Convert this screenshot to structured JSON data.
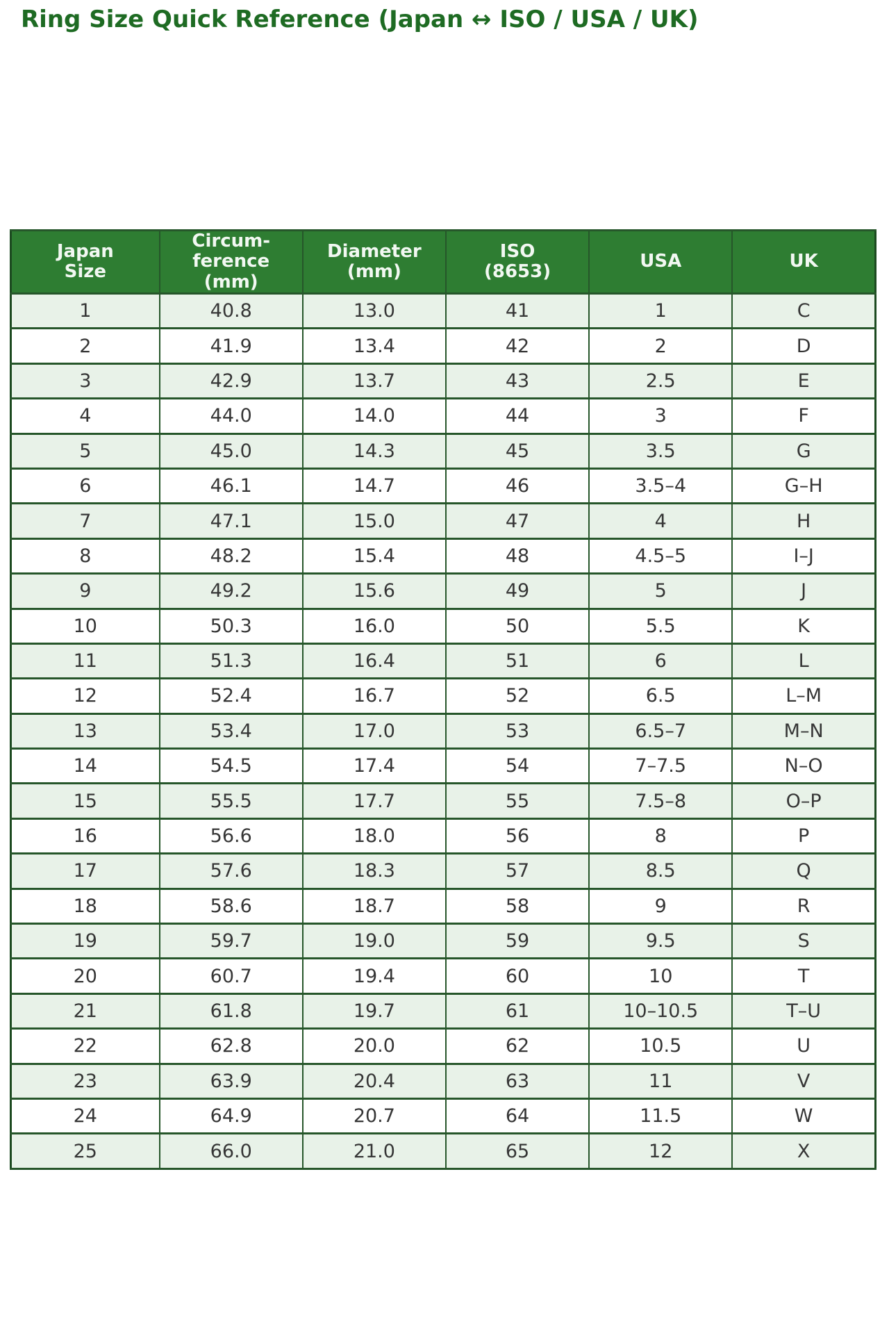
{
  "title": "Ring Size Quick Reference (Japan ↔ ISO / USA / UK)",
  "colors": {
    "title_text": "#1e6b23",
    "header_bg": "#2e7d32",
    "header_text": "#f2f8f2",
    "border": "#26562a",
    "row_stripe_bg": "#e8f2e8",
    "row_bg": "#ffffff",
    "cell_text": "#363636"
  },
  "chart_data": {
    "type": "table",
    "title": "Ring Size Quick Reference (Japan ↔ ISO / USA / UK)",
    "headers": [
      "Japan\nSize",
      "Circum-\nference\n(mm)",
      "Diameter\n(mm)",
      "ISO\n(8653)",
      "USA",
      "UK"
    ],
    "rows": [
      [
        "1",
        "40.8",
        "13.0",
        "41",
        "1",
        "C"
      ],
      [
        "2",
        "41.9",
        "13.4",
        "42",
        "2",
        "D"
      ],
      [
        "3",
        "42.9",
        "13.7",
        "43",
        "2.5",
        "E"
      ],
      [
        "4",
        "44.0",
        "14.0",
        "44",
        "3",
        "F"
      ],
      [
        "5",
        "45.0",
        "14.3",
        "45",
        "3.5",
        "G"
      ],
      [
        "6",
        "46.1",
        "14.7",
        "46",
        "3.5–4",
        "G–H"
      ],
      [
        "7",
        "47.1",
        "15.0",
        "47",
        "4",
        "H"
      ],
      [
        "8",
        "48.2",
        "15.4",
        "48",
        "4.5–5",
        "I–J"
      ],
      [
        "9",
        "49.2",
        "15.6",
        "49",
        "5",
        "J"
      ],
      [
        "10",
        "50.3",
        "16.0",
        "50",
        "5.5",
        "K"
      ],
      [
        "11",
        "51.3",
        "16.4",
        "51",
        "6",
        "L"
      ],
      [
        "12",
        "52.4",
        "16.7",
        "52",
        "6.5",
        "L–M"
      ],
      [
        "13",
        "53.4",
        "17.0",
        "53",
        "6.5–7",
        "M–N"
      ],
      [
        "14",
        "54.5",
        "17.4",
        "54",
        "7–7.5",
        "N–O"
      ],
      [
        "15",
        "55.5",
        "17.7",
        "55",
        "7.5–8",
        "O–P"
      ],
      [
        "16",
        "56.6",
        "18.0",
        "56",
        "8",
        "P"
      ],
      [
        "17",
        "57.6",
        "18.3",
        "57",
        "8.5",
        "Q"
      ],
      [
        "18",
        "58.6",
        "18.7",
        "58",
        "9",
        "R"
      ],
      [
        "19",
        "59.7",
        "19.0",
        "59",
        "9.5",
        "S"
      ],
      [
        "20",
        "60.7",
        "19.4",
        "60",
        "10",
        "T"
      ],
      [
        "21",
        "61.8",
        "19.7",
        "61",
        "10–10.5",
        "T–U"
      ],
      [
        "22",
        "62.8",
        "20.0",
        "62",
        "10.5",
        "U"
      ],
      [
        "23",
        "63.9",
        "20.4",
        "63",
        "11",
        "V"
      ],
      [
        "24",
        "64.9",
        "20.7",
        "64",
        "11.5",
        "W"
      ],
      [
        "25",
        "66.0",
        "21.0",
        "65",
        "12",
        "X"
      ]
    ],
    "layout_hints": {
      "striped_rows": true,
      "first_body_row_shaded": true,
      "columns": 6,
      "header_position": "top",
      "grid": true
    }
  }
}
